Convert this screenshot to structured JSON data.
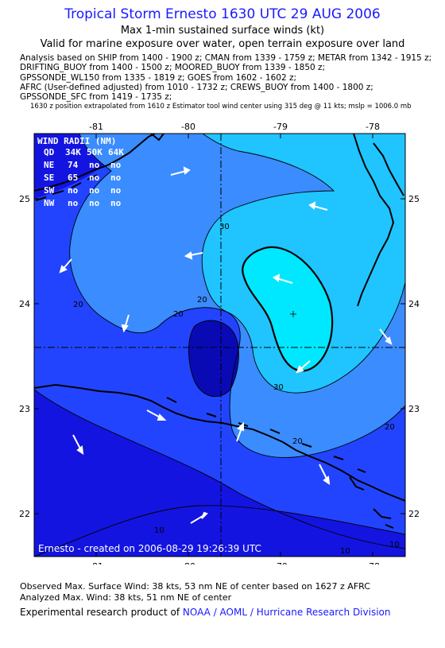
{
  "header": {
    "title": "Tropical Storm Ernesto 1630 UTC 29 AUG 2006",
    "subtitle": "Max 1-min sustained surface winds (kt)",
    "validity": "Valid for marine exposure over water, open terrain exposure over land"
  },
  "analysis_lines": [
    "Analysis based on  SHIP from 1400 - 1900 z;  CMAN from 1339 - 1759 z;  METAR from 1342 - 1915 z;",
    "DRIFTING_BUOY from 1400 - 1500 z;  MOORED_BUOY from 1339 - 1850 z;",
    "GPSSONDE_WL150 from 1335 - 1819 z;  GOES from 1602 - 1602 z;",
    "AFRC (User-defined adjusted) from 1010 - 1732 z;  CREWS_BUOY from 1400 - 1800 z;",
    "GPSSONDE_SFC from 1419 - 1735 z;"
  ],
  "position_note": "1630 z position extrapolated from 1610 z Estimator tool wind center using 315 deg @ 11 kts; mslp = 1006.0 mb",
  "map": {
    "lon_labels": [
      "-81",
      "-80",
      "-79",
      "-78"
    ],
    "lat_labels": [
      "25",
      "24",
      "23",
      "22"
    ],
    "contour_labels": [
      "20",
      "30",
      "20",
      "20",
      "30",
      "20",
      "20",
      "10",
      "10",
      "10"
    ],
    "wind_radii": {
      "title": "WIND RADII (NM)",
      "columns": [
        "QD",
        "34K",
        "50K",
        "64K"
      ],
      "rows": [
        [
          "NE",
          "74",
          "no",
          "no"
        ],
        [
          "SE",
          "65",
          "no",
          "no"
        ],
        [
          "SW",
          "no",
          "no",
          "no"
        ],
        [
          "NW",
          "no",
          "no",
          "no"
        ]
      ]
    },
    "credit": "Ernesto - created on 2006-08-29 19:26:39 UTC",
    "colors": {
      "level_lt10": "#1414e0",
      "level_10_20": "#2244ff",
      "level_20_30": "#3a8cff",
      "level_30_38": "#20c4ff",
      "level_ge38": "#00e8ff",
      "vortex_core": "#0a0ab4",
      "land": "#000000"
    }
  },
  "footer": {
    "observed": "Observed Max. Surface Wind: 38 kts, 53 nm NE of center based on 1627 z AFRC",
    "analyzed": "Analyzed Max. Wind: 38 kts, 51 nm NE of center",
    "product_prefix": "Experimental research product of ",
    "product_org": "NOAA / AOML / Hurricane Research Division"
  }
}
